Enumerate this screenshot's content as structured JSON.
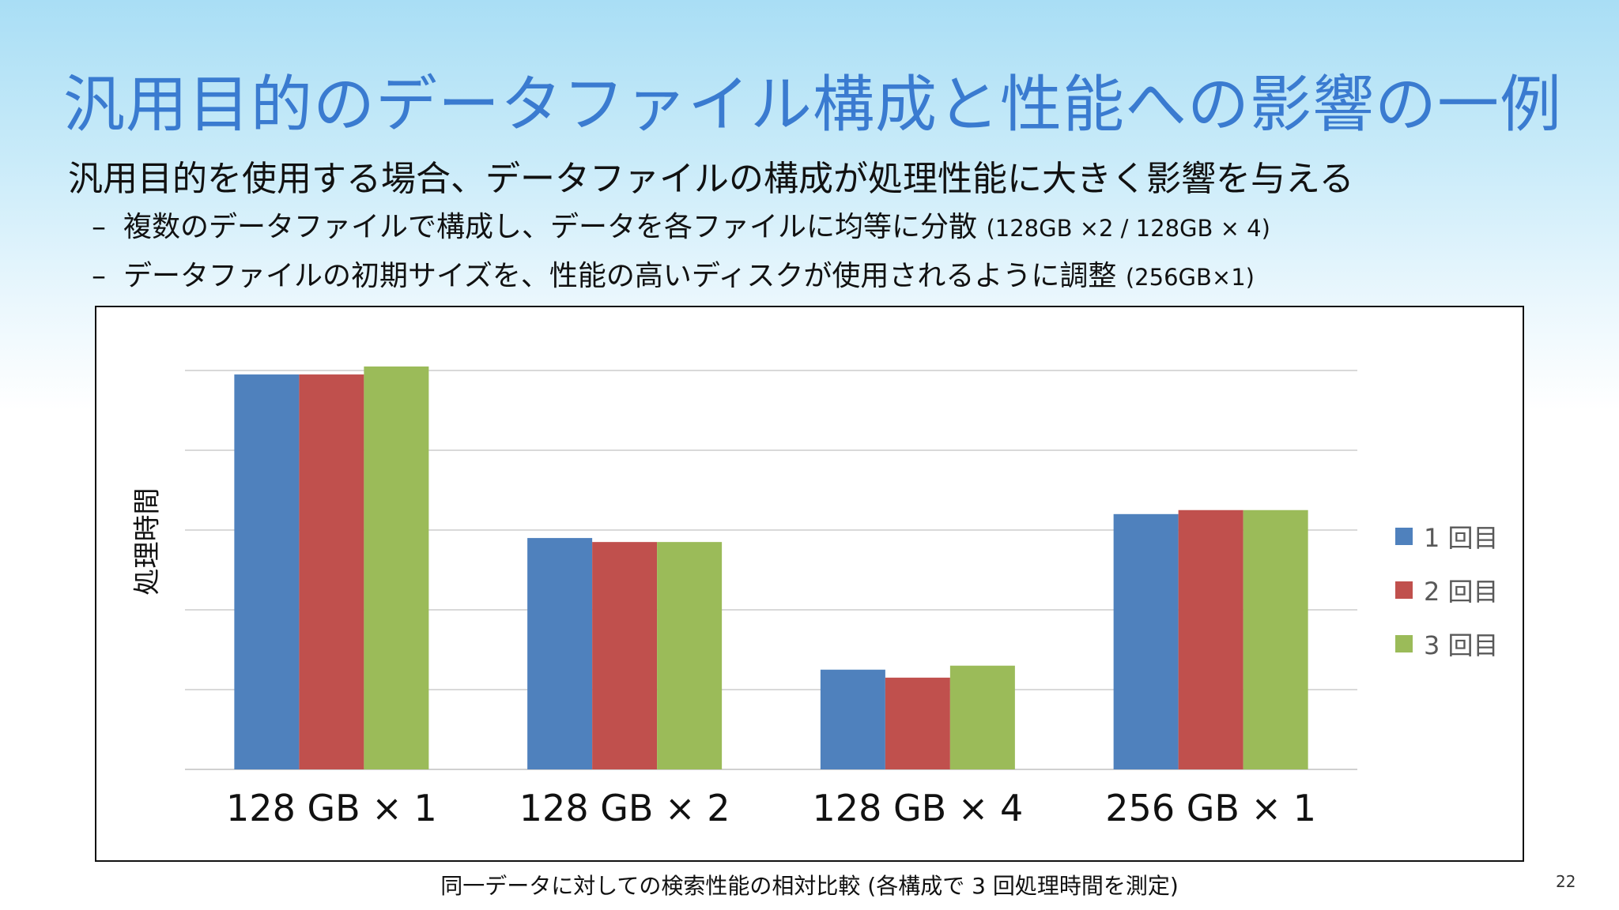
{
  "slide": {
    "title": "汎用目的のデータファイル構成と性能への影響の一例",
    "lead": "汎用目的を使用する場合、データファイルの構成が処理性能に大きく影響を与える",
    "bullets": [
      {
        "dash": "–",
        "text": "複数のデータファイルで構成し、データを各ファイルに均等に分散 ",
        "note": "(128GB ×2 / 128GB × 4)"
      },
      {
        "dash": "–",
        "text": "データファイルの初期サイズを、性能の高いディスクが使用されるように調整 ",
        "note": "(256GB×1)"
      }
    ],
    "caption": "同一データに対しての検索性能の相対比較 (各構成で 3 回処理時間を測定)",
    "page_number": "22"
  },
  "chart_data": {
    "type": "bar",
    "title": "",
    "xlabel": "",
    "ylabel": "処理時間",
    "categories": [
      "128 GB × 1",
      "128 GB × 2",
      "128 GB × 4",
      "256 GB × 1"
    ],
    "series": [
      {
        "name": "1 回目",
        "color": "#4f81bd",
        "values": [
          4.95,
          2.9,
          1.25,
          3.2
        ]
      },
      {
        "name": "2 回目",
        "color": "#c0504d",
        "values": [
          4.95,
          2.85,
          1.15,
          3.25
        ]
      },
      {
        "name": "3 回目",
        "color": "#9bbb59",
        "values": [
          5.05,
          2.85,
          1.3,
          3.25
        ]
      }
    ],
    "ylim": [
      0,
      5
    ],
    "y_gridlines": [
      0,
      1,
      2,
      3,
      4,
      5
    ],
    "y_tick_labels_shown": false,
    "grid": true,
    "legend": "right"
  }
}
